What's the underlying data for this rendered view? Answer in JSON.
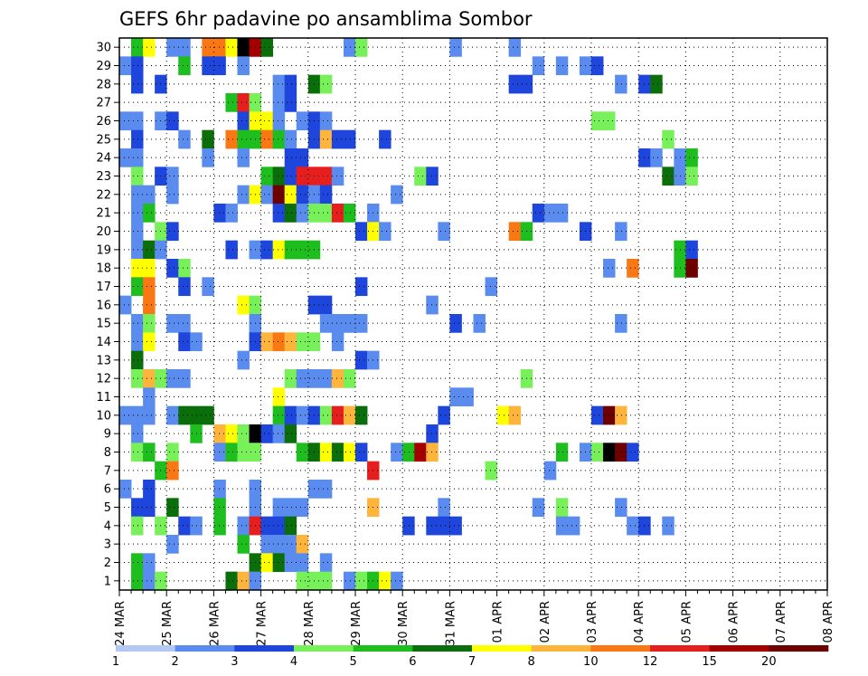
{
  "chart_data": {
    "type": "heatmap",
    "title": "GEFS 6hr padavine po ansamblima Sombor",
    "xlabel": "",
    "ylabel": "",
    "x_tick_labels": [
      "24 MAR",
      "25 MAR",
      "26 MAR",
      "27 MAR",
      "28 MAR",
      "29 MAR",
      "30 MAR",
      "31 MAR",
      "01 APR",
      "02 APR",
      "03 APR",
      "04 APR",
      "05 APR",
      "06 APR",
      "07 APR",
      "08 APR"
    ],
    "x_range_days": [
      0,
      15
    ],
    "steps_per_day": 4,
    "y_range_members": [
      0.5,
      30.5
    ],
    "y_ticks": [
      1,
      2,
      3,
      4,
      5,
      6,
      7,
      8,
      9,
      10,
      11,
      12,
      13,
      14,
      15,
      16,
      17,
      18,
      19,
      20,
      21,
      22,
      23,
      24,
      25,
      26,
      27,
      28,
      29,
      30
    ],
    "grid": "dotted",
    "colorbar": {
      "placement": "bottom",
      "labels": [
        "1",
        "2",
        "3",
        "4",
        "5",
        "6",
        "7",
        "8",
        "10",
        "12",
        "15",
        "20"
      ],
      "colors": [
        "#b4c8f5",
        "#5a8cf0",
        "#1e46dc",
        "#78f05a",
        "#1ebe1e",
        "#0a6e0a",
        "#ffff00",
        "#ffb43c",
        "#fa7814",
        "#e61e1e",
        "#a50000",
        "#6e0000"
      ]
    },
    "cells": [
      [
        30,
        1,
        1
      ],
      [
        30,
        1,
        4
      ],
      [
        30,
        2,
        6
      ],
      [
        30,
        4,
        1
      ],
      [
        30,
        5,
        1
      ],
      [
        30,
        7,
        8
      ],
      [
        30,
        8,
        8
      ],
      [
        30,
        9,
        6
      ],
      [
        30,
        10,
        12
      ],
      [
        30,
        11,
        10
      ],
      [
        30,
        12,
        5
      ],
      [
        30,
        19,
        1
      ],
      [
        30,
        20,
        3
      ],
      [
        30,
        28,
        1
      ],
      [
        30,
        33,
        1
      ],
      [
        29,
        0,
        1
      ],
      [
        29,
        1,
        2
      ],
      [
        29,
        5,
        4
      ],
      [
        29,
        7,
        2
      ],
      [
        29,
        8,
        2
      ],
      [
        29,
        10,
        1
      ],
      [
        29,
        35,
        1
      ],
      [
        29,
        37,
        1
      ],
      [
        29,
        39,
        1
      ],
      [
        29,
        40,
        2
      ],
      [
        28,
        1,
        2
      ],
      [
        28,
        3,
        2
      ],
      [
        28,
        13,
        1
      ],
      [
        28,
        14,
        2
      ],
      [
        28,
        16,
        5
      ],
      [
        28,
        17,
        3
      ],
      [
        28,
        33,
        2
      ],
      [
        28,
        34,
        2
      ],
      [
        28,
        42,
        1
      ],
      [
        28,
        44,
        2
      ],
      [
        28,
        45,
        5
      ],
      [
        27,
        9,
        4
      ],
      [
        27,
        10,
        9
      ],
      [
        27,
        11,
        3
      ],
      [
        27,
        13,
        1
      ],
      [
        27,
        14,
        2
      ],
      [
        26,
        0,
        1
      ],
      [
        26,
        1,
        1
      ],
      [
        26,
        3,
        1
      ],
      [
        26,
        4,
        2
      ],
      [
        26,
        10,
        2
      ],
      [
        26,
        11,
        6
      ],
      [
        26,
        12,
        6
      ],
      [
        26,
        13,
        1
      ],
      [
        26,
        15,
        1
      ],
      [
        26,
        16,
        2
      ],
      [
        26,
        17,
        1
      ],
      [
        26,
        40,
        3
      ],
      [
        26,
        41,
        3
      ],
      [
        25,
        1,
        2
      ],
      [
        25,
        5,
        1
      ],
      [
        25,
        7,
        5
      ],
      [
        25,
        9,
        8
      ],
      [
        25,
        10,
        4
      ],
      [
        25,
        11,
        4
      ],
      [
        25,
        12,
        8
      ],
      [
        25,
        13,
        4
      ],
      [
        25,
        14,
        1
      ],
      [
        25,
        16,
        2
      ],
      [
        25,
        17,
        7
      ],
      [
        25,
        18,
        2
      ],
      [
        25,
        19,
        2
      ],
      [
        25,
        22,
        2
      ],
      [
        25,
        46,
        3
      ],
      [
        24,
        0,
        1
      ],
      [
        24,
        1,
        1
      ],
      [
        24,
        7,
        1
      ],
      [
        24,
        10,
        1
      ],
      [
        24,
        14,
        2
      ],
      [
        24,
        15,
        2
      ],
      [
        24,
        44,
        2
      ],
      [
        24,
        45,
        1
      ],
      [
        24,
        47,
        1
      ],
      [
        24,
        48,
        4
      ],
      [
        23,
        1,
        3
      ],
      [
        23,
        3,
        2
      ],
      [
        23,
        4,
        1
      ],
      [
        23,
        12,
        4
      ],
      [
        23,
        13,
        5
      ],
      [
        23,
        14,
        2
      ],
      [
        23,
        15,
        9
      ],
      [
        23,
        16,
        9
      ],
      [
        23,
        17,
        9
      ],
      [
        23,
        18,
        1
      ],
      [
        23,
        25,
        3
      ],
      [
        23,
        26,
        2
      ],
      [
        23,
        46,
        5
      ],
      [
        23,
        47,
        1
      ],
      [
        23,
        48,
        3
      ],
      [
        22,
        1,
        1
      ],
      [
        22,
        2,
        1
      ],
      [
        22,
        4,
        1
      ],
      [
        22,
        10,
        1
      ],
      [
        22,
        11,
        6
      ],
      [
        22,
        12,
        1
      ],
      [
        22,
        13,
        11
      ],
      [
        22,
        14,
        6
      ],
      [
        22,
        15,
        2
      ],
      [
        22,
        16,
        1
      ],
      [
        22,
        17,
        2
      ],
      [
        22,
        23,
        1
      ],
      [
        21,
        1,
        1
      ],
      [
        21,
        2,
        4
      ],
      [
        21,
        8,
        2
      ],
      [
        21,
        9,
        1
      ],
      [
        21,
        13,
        2
      ],
      [
        21,
        14,
        5
      ],
      [
        21,
        15,
        1
      ],
      [
        21,
        16,
        3
      ],
      [
        21,
        17,
        3
      ],
      [
        21,
        18,
        9
      ],
      [
        21,
        19,
        4
      ],
      [
        21,
        21,
        1
      ],
      [
        21,
        35,
        2
      ],
      [
        21,
        36,
        1
      ],
      [
        21,
        37,
        1
      ],
      [
        20,
        1,
        1
      ],
      [
        20,
        3,
        3
      ],
      [
        20,
        4,
        2
      ],
      [
        20,
        20,
        2
      ],
      [
        20,
        21,
        6
      ],
      [
        20,
        22,
        1
      ],
      [
        20,
        27,
        1
      ],
      [
        20,
        33,
        8
      ],
      [
        20,
        34,
        4
      ],
      [
        20,
        39,
        2
      ],
      [
        20,
        42,
        1
      ],
      [
        19,
        1,
        1
      ],
      [
        19,
        2,
        5
      ],
      [
        19,
        3,
        1
      ],
      [
        19,
        9,
        2
      ],
      [
        19,
        11,
        1
      ],
      [
        19,
        12,
        2
      ],
      [
        19,
        13,
        6
      ],
      [
        19,
        14,
        4
      ],
      [
        19,
        15,
        4
      ],
      [
        19,
        16,
        4
      ],
      [
        19,
        47,
        4
      ],
      [
        19,
        48,
        2
      ],
      [
        18,
        1,
        6
      ],
      [
        18,
        2,
        6
      ],
      [
        18,
        4,
        2
      ],
      [
        18,
        5,
        3
      ],
      [
        18,
        41,
        1
      ],
      [
        18,
        43,
        8
      ],
      [
        18,
        47,
        4
      ],
      [
        18,
        48,
        11
      ],
      [
        17,
        1,
        4
      ],
      [
        17,
        2,
        8
      ],
      [
        17,
        5,
        2
      ],
      [
        17,
        7,
        1
      ],
      [
        17,
        20,
        2
      ],
      [
        17,
        31,
        1
      ],
      [
        16,
        0,
        1
      ],
      [
        16,
        2,
        8
      ],
      [
        16,
        10,
        6
      ],
      [
        16,
        11,
        3
      ],
      [
        16,
        16,
        2
      ],
      [
        16,
        17,
        2
      ],
      [
        16,
        26,
        1
      ],
      [
        15,
        1,
        1
      ],
      [
        15,
        2,
        3
      ],
      [
        15,
        4,
        1
      ],
      [
        15,
        5,
        1
      ],
      [
        15,
        11,
        1
      ],
      [
        15,
        17,
        1
      ],
      [
        15,
        18,
        1
      ],
      [
        15,
        19,
        1
      ],
      [
        15,
        20,
        1
      ],
      [
        15,
        28,
        2
      ],
      [
        15,
        30,
        1
      ],
      [
        15,
        42,
        1
      ],
      [
        14,
        1,
        1
      ],
      [
        14,
        2,
        6
      ],
      [
        14,
        5,
        2
      ],
      [
        14,
        6,
        1
      ],
      [
        14,
        11,
        2
      ],
      [
        14,
        12,
        7
      ],
      [
        14,
        13,
        8
      ],
      [
        14,
        14,
        7
      ],
      [
        14,
        15,
        3
      ],
      [
        14,
        16,
        3
      ],
      [
        14,
        18,
        1
      ],
      [
        13,
        1,
        5
      ],
      [
        13,
        10,
        1
      ],
      [
        13,
        20,
        2
      ],
      [
        13,
        21,
        1
      ],
      [
        12,
        1,
        3
      ],
      [
        12,
        2,
        7
      ],
      [
        12,
        3,
        3
      ],
      [
        12,
        4,
        1
      ],
      [
        12,
        5,
        1
      ],
      [
        12,
        14,
        3
      ],
      [
        12,
        15,
        1
      ],
      [
        12,
        16,
        1
      ],
      [
        12,
        17,
        1
      ],
      [
        12,
        18,
        7
      ],
      [
        12,
        19,
        3
      ],
      [
        12,
        34,
        3
      ],
      [
        11,
        2,
        1
      ],
      [
        11,
        13,
        6
      ],
      [
        11,
        28,
        1
      ],
      [
        11,
        29,
        1
      ],
      [
        10,
        0,
        1
      ],
      [
        10,
        1,
        1
      ],
      [
        10,
        2,
        1
      ],
      [
        10,
        4,
        1
      ],
      [
        10,
        5,
        5
      ],
      [
        10,
        6,
        5
      ],
      [
        10,
        7,
        5
      ],
      [
        10,
        13,
        4
      ],
      [
        10,
        14,
        2
      ],
      [
        10,
        15,
        1
      ],
      [
        10,
        16,
        2
      ],
      [
        10,
        17,
        3
      ],
      [
        10,
        18,
        9
      ],
      [
        10,
        19,
        7
      ],
      [
        10,
        20,
        5
      ],
      [
        10,
        27,
        2
      ],
      [
        10,
        32,
        6
      ],
      [
        10,
        33,
        7
      ],
      [
        10,
        40,
        2
      ],
      [
        10,
        41,
        11
      ],
      [
        10,
        42,
        7
      ],
      [
        9,
        1,
        1
      ],
      [
        9,
        6,
        4
      ],
      [
        9,
        8,
        7
      ],
      [
        9,
        9,
        6
      ],
      [
        9,
        10,
        3
      ],
      [
        9,
        11,
        12
      ],
      [
        9,
        12,
        2
      ],
      [
        9,
        13,
        1
      ],
      [
        9,
        14,
        5
      ],
      [
        9,
        26,
        2
      ],
      [
        8,
        1,
        3
      ],
      [
        8,
        2,
        4
      ],
      [
        8,
        4,
        3
      ],
      [
        8,
        8,
        1
      ],
      [
        8,
        9,
        4
      ],
      [
        8,
        10,
        3
      ],
      [
        8,
        11,
        3
      ],
      [
        8,
        15,
        4
      ],
      [
        8,
        16,
        5
      ],
      [
        8,
        17,
        6
      ],
      [
        8,
        18,
        5
      ],
      [
        8,
        19,
        6
      ],
      [
        8,
        20,
        2
      ],
      [
        8,
        23,
        1
      ],
      [
        8,
        24,
        4
      ],
      [
        8,
        25,
        10
      ],
      [
        8,
        26,
        7
      ],
      [
        8,
        37,
        4
      ],
      [
        8,
        39,
        1
      ],
      [
        8,
        40,
        3
      ],
      [
        8,
        41,
        12
      ],
      [
        8,
        42,
        11
      ],
      [
        8,
        43,
        2
      ],
      [
        7,
        3,
        4
      ],
      [
        7,
        4,
        8
      ],
      [
        7,
        21,
        9
      ],
      [
        7,
        31,
        3
      ],
      [
        7,
        36,
        1
      ],
      [
        6,
        0,
        1
      ],
      [
        6,
        2,
        2
      ],
      [
        6,
        8,
        1
      ],
      [
        6,
        11,
        1
      ],
      [
        6,
        16,
        1
      ],
      [
        6,
        17,
        1
      ],
      [
        5,
        1,
        2
      ],
      [
        5,
        2,
        2
      ],
      [
        5,
        4,
        5
      ],
      [
        5,
        8,
        4
      ],
      [
        5,
        11,
        1
      ],
      [
        5,
        13,
        1
      ],
      [
        5,
        14,
        1
      ],
      [
        5,
        15,
        1
      ],
      [
        5,
        21,
        7
      ],
      [
        5,
        27,
        1
      ],
      [
        5,
        35,
        1
      ],
      [
        5,
        37,
        3
      ],
      [
        5,
        42,
        1
      ],
      [
        4,
        1,
        3
      ],
      [
        4,
        3,
        3
      ],
      [
        4,
        5,
        2
      ],
      [
        4,
        6,
        1
      ],
      [
        4,
        8,
        4
      ],
      [
        4,
        10,
        1
      ],
      [
        4,
        11,
        9
      ],
      [
        4,
        12,
        2
      ],
      [
        4,
        13,
        2
      ],
      [
        4,
        14,
        5
      ],
      [
        4,
        24,
        2
      ],
      [
        4,
        26,
        2
      ],
      [
        4,
        27,
        2
      ],
      [
        4,
        28,
        2
      ],
      [
        4,
        37,
        1
      ],
      [
        4,
        38,
        1
      ],
      [
        4,
        43,
        1
      ],
      [
        4,
        44,
        2
      ],
      [
        4,
        46,
        1
      ],
      [
        3,
        4,
        1
      ],
      [
        3,
        10,
        4
      ],
      [
        3,
        12,
        1
      ],
      [
        3,
        13,
        1
      ],
      [
        3,
        14,
        1
      ],
      [
        3,
        15,
        7
      ],
      [
        2,
        1,
        4
      ],
      [
        2,
        2,
        1
      ],
      [
        2,
        11,
        5
      ],
      [
        2,
        12,
        6
      ],
      [
        2,
        13,
        5
      ],
      [
        2,
        14,
        1
      ],
      [
        2,
        15,
        1
      ],
      [
        2,
        17,
        1
      ],
      [
        1,
        1,
        4
      ],
      [
        1,
        2,
        1
      ],
      [
        1,
        3,
        3
      ],
      [
        1,
        9,
        5
      ],
      [
        1,
        10,
        7
      ],
      [
        1,
        11,
        1
      ],
      [
        1,
        15,
        3
      ],
      [
        1,
        16,
        3
      ],
      [
        1,
        17,
        3
      ],
      [
        1,
        19,
        1
      ],
      [
        1,
        20,
        3
      ],
      [
        1,
        21,
        4
      ],
      [
        1,
        22,
        6
      ],
      [
        1,
        23,
        1
      ]
    ]
  }
}
